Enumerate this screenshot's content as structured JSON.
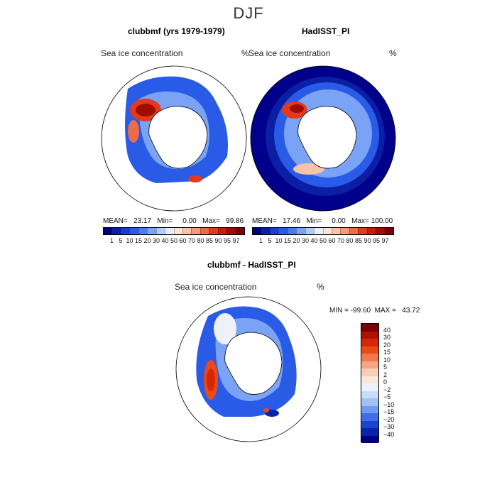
{
  "season": "DJF",
  "panels": [
    {
      "title": "clubbmf (yrs 1979-1979)",
      "variable": "Sea ice concentration",
      "unit": "%",
      "stats": "MEAN=   23.17   Min=     0.00   Max=   99.86"
    },
    {
      "title": "HadISST_PI",
      "variable": "Sea ice concentration",
      "unit": "%",
      "stats": "MEAN=   17.46   Min=     0.00   Max= 100.00"
    },
    {
      "title": "clubbmf - HadISST_PI",
      "variable": "Sea ice concentration",
      "unit": "%",
      "stats": "MIN = -99.60  MAX =   43.72"
    }
  ],
  "colorbar_abs": {
    "levels": [
      "1",
      "5",
      "10",
      "15",
      "20",
      "30",
      "40",
      "50",
      "60",
      "70",
      "80",
      "85",
      "90",
      "95",
      "97"
    ],
    "colors": [
      "#00007f",
      "#0a1fa3",
      "#1b3fcc",
      "#2a5be6",
      "#4a7bef",
      "#7aa3f5",
      "#b0ccf8",
      "#e6eef9",
      "#fbe3d6",
      "#f8c3a8",
      "#f39a7a",
      "#ec6b4a",
      "#e03a1f",
      "#c41d0a",
      "#a00c00",
      "#7a0000"
    ]
  },
  "colorbar_diff": {
    "levels": [
      "40",
      "30",
      "20",
      "15",
      "10",
      "5",
      "2",
      "0",
      "−2",
      "−5",
      "−10",
      "−15",
      "−20",
      "−30",
      "−40"
    ],
    "colors": [
      "#7a0000",
      "#b01000",
      "#d62800",
      "#e84a18",
      "#f07a4a",
      "#f5a680",
      "#f9cdb5",
      "#fbe6da",
      "#eef2f8",
      "#c8dbf7",
      "#a1c1f4",
      "#6f9bee",
      "#3e6ee3",
      "#1b45cf",
      "#0a23a8",
      "#00007f"
    ]
  },
  "chart_data": [
    {
      "type": "heatmap",
      "title": "clubbmf (yrs 1979-1979)",
      "subtitle": "Sea ice concentration",
      "unit": "%",
      "projection": "south polar stereographic",
      "mean": 23.17,
      "min": 0.0,
      "max": 99.86,
      "levels": [
        1,
        5,
        10,
        15,
        20,
        30,
        40,
        50,
        60,
        70,
        80,
        85,
        90,
        95,
        97
      ]
    },
    {
      "type": "heatmap",
      "title": "HadISST_PI",
      "subtitle": "Sea ice concentration",
      "unit": "%",
      "projection": "south polar stereographic",
      "mean": 17.46,
      "min": 0.0,
      "max": 100.0,
      "levels": [
        1,
        5,
        10,
        15,
        20,
        30,
        40,
        50,
        60,
        70,
        80,
        85,
        90,
        95,
        97
      ]
    },
    {
      "type": "heatmap",
      "title": "clubbmf - HadISST_PI",
      "subtitle": "Sea ice concentration",
      "unit": "%",
      "projection": "south polar stereographic",
      "min": -99.6,
      "max": 43.72,
      "levels": [
        -40,
        -30,
        -20,
        -15,
        -10,
        -5,
        -2,
        0,
        2,
        5,
        10,
        15,
        20,
        30,
        40
      ]
    }
  ]
}
